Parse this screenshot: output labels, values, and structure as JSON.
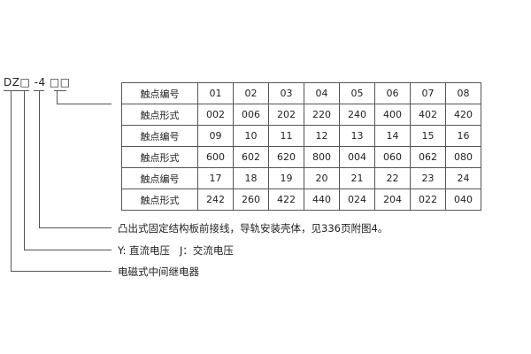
{
  "model_code": "DZ□ -4 □□",
  "table": {
    "rows": [
      {
        "label": "触点编号",
        "cells": [
          "01",
          "02",
          "03",
          "04",
          "05",
          "06",
          "07",
          "08"
        ]
      },
      {
        "label": "触点形式",
        "cells": [
          "002",
          "006",
          "202",
          "220",
          "240",
          "400",
          "402",
          "420"
        ]
      },
      {
        "label": "触点编号",
        "cells": [
          "09",
          "10",
          "11",
          "12",
          "13",
          "14",
          "15",
          "16"
        ]
      },
      {
        "label": "触点形式",
        "cells": [
          "600",
          "602",
          "620",
          "800",
          "004",
          "060",
          "062",
          "080"
        ]
      },
      {
        "label": "触点编号",
        "cells": [
          "17",
          "18",
          "19",
          "20",
          "21",
          "22",
          "23",
          "24"
        ]
      },
      {
        "label": "触点形式",
        "cells": [
          "242",
          "260",
          "422",
          "440",
          "024",
          "204",
          "022",
          "040"
        ]
      }
    ]
  },
  "notes": {
    "structure": "凸出式固定结构板前接线，导轨安装壳体，见336页附图4。",
    "voltage": "Y: 直流电压   J：交流电压",
    "type": "电磁式中间继电器"
  }
}
